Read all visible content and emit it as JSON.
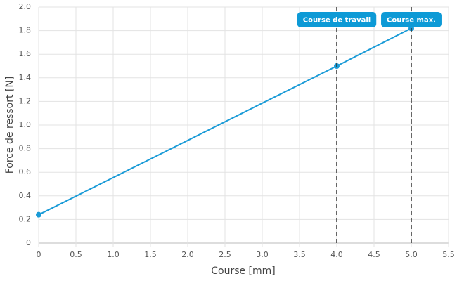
{
  "chart_data": {
    "type": "line",
    "x_label": "Course [mm]",
    "y_label": "Force de ressort [N]",
    "x": [
      0,
      4,
      5
    ],
    "series": [
      {
        "name": "Force de ressort",
        "color": "#1a9bd7",
        "values": [
          0.24,
          1.5,
          1.82
        ]
      }
    ],
    "xlim": [
      0,
      5.5
    ],
    "xticks": [
      0,
      0.5,
      {
        "value": 1,
        "label": "1.0"
      },
      1.5,
      {
        "value": 2,
        "label": "2.0"
      },
      2.5,
      {
        "value": 3,
        "label": "3.0"
      },
      3.5,
      {
        "value": 4,
        "label": "4.0"
      },
      4.5,
      {
        "value": 5,
        "label": "5.0"
      },
      5.5
    ],
    "ylim": [
      0,
      2
    ],
    "yticks": [
      0,
      0.2,
      0.4,
      0.6,
      0.8,
      {
        "value": 1,
        "label": "1.0"
      },
      1.2,
      1.4,
      1.6,
      1.8,
      {
        "value": 2,
        "label": "2.0"
      }
    ],
    "grid": true,
    "annotations": [
      {
        "x": 4,
        "label": "Course de travail"
      },
      {
        "x": 5,
        "label": "Course max."
      }
    ]
  }
}
